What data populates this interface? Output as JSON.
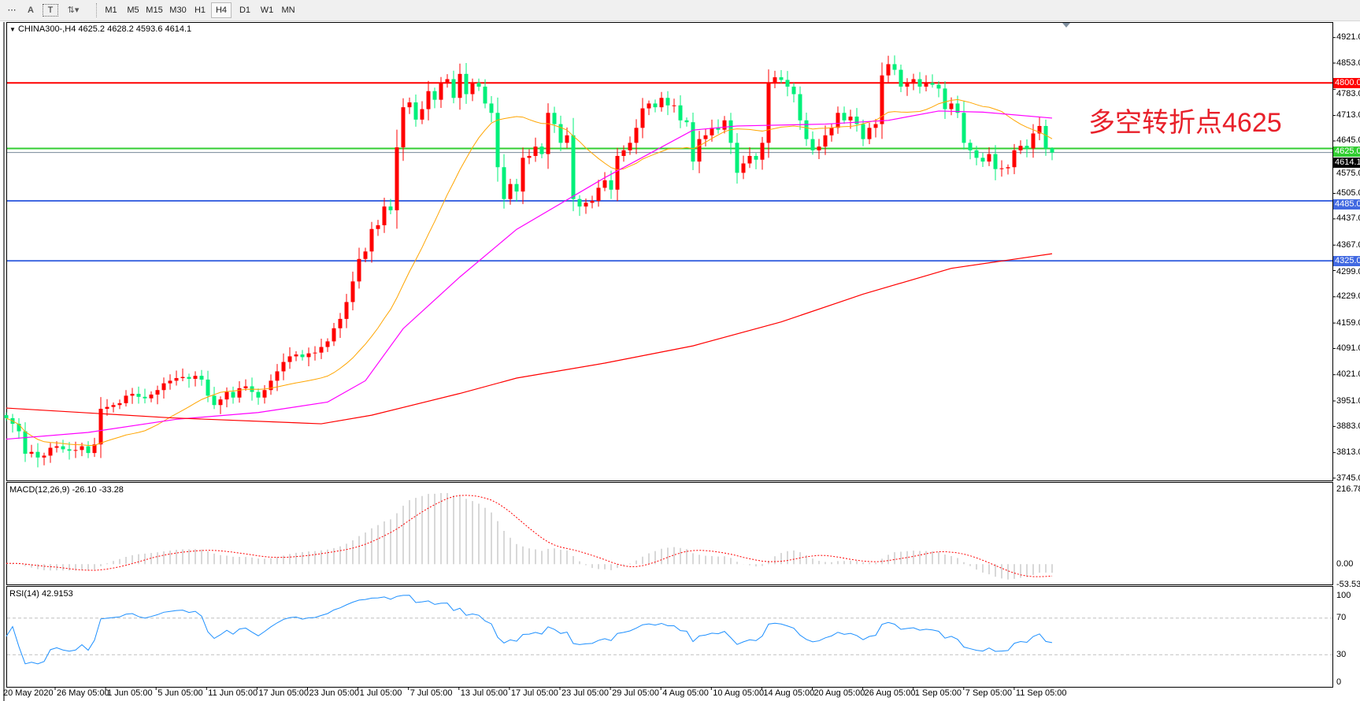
{
  "toolbar": {
    "tools": [
      {
        "name": "grid-icon",
        "glyph": "⋯"
      },
      {
        "name": "text-tool",
        "glyph": "A"
      },
      {
        "name": "text-label-tool",
        "glyph": "T"
      },
      {
        "name": "arrows-tool",
        "glyph": "⇅▾"
      }
    ],
    "timeframes": [
      "M1",
      "M5",
      "M15",
      "M30",
      "H1",
      "H4",
      "D1",
      "W1",
      "MN"
    ],
    "active_timeframe": "H4"
  },
  "chart": {
    "symbol_label": "CHINA300-,H4  4625.2 4628.2 4593.6 4614.1",
    "annotation": "多空转折点4625",
    "annotation_color": "#e8202a",
    "up_color": "#ff0000",
    "down_color": "#00f07a",
    "price_axis": [
      "4921.0",
      "4853.0",
      "4783.0",
      "4713.0",
      "4645.0",
      "4575.0",
      "4505.0",
      "4437.0",
      "4367.0",
      "4299.0",
      "4229.0",
      "4159.0",
      "4091.0",
      "4021.0",
      "3951.0",
      "3883.0",
      "3813.0",
      "3745.0"
    ],
    "ylim": [
      3745,
      4921
    ],
    "levels": [
      {
        "value": 4800,
        "label": "4800.0",
        "color": "#ff0000"
      },
      {
        "value": 4625,
        "label": "4625.0",
        "color": "#32cd32"
      },
      {
        "value": 4614.1,
        "label": "4614.1",
        "color": "#000000",
        "line_color": "#778899"
      },
      {
        "value": 4485,
        "label": "4485.0",
        "color": "#4169e1"
      },
      {
        "value": 4325,
        "label": "4325.0",
        "color": "#4169e1"
      }
    ],
    "closes": [
      3905,
      3890,
      3870,
      3810,
      3815,
      3800,
      3805,
      3826,
      3830,
      3822,
      3818,
      3820,
      3830,
      3812,
      3835,
      3930,
      3935,
      3940,
      3945,
      3965,
      3970,
      3962,
      3958,
      3968,
      3980,
      3998,
      4005,
      4012,
      4015,
      4010,
      4018,
      4008,
      3965,
      3940,
      3955,
      3975,
      3960,
      3985,
      3990,
      3975,
      3960,
      3980,
      4005,
      4030,
      4055,
      4070,
      4075,
      4068,
      4078,
      4080,
      4095,
      4110,
      4145,
      4170,
      4215,
      4270,
      4330,
      4350,
      4410,
      4420,
      4470,
      4460,
      4628,
      4735,
      4748,
      4702,
      4730,
      4778,
      4755,
      4800,
      4810,
      4760,
      4824,
      4770,
      4800,
      4790,
      4745,
      4720,
      4575,
      4490,
      4530,
      4510,
      4600,
      4605,
      4630,
      4610,
      4720,
      4690,
      4640,
      4660,
      4490,
      4470,
      4480,
      4485,
      4520,
      4540,
      4515,
      4605,
      4620,
      4640,
      4680,
      4732,
      4745,
      4735,
      4760,
      4740,
      4740,
      4700,
      4695,
      4590,
      4650,
      4660,
      4680,
      4675,
      4700,
      4640,
      4560,
      4585,
      4605,
      4595,
      4640,
      4800,
      4815,
      4808,
      4790,
      4770,
      4700,
      4650,
      4620,
      4630,
      4660,
      4680,
      4720,
      4700,
      4710,
      4690,
      4650,
      4680,
      4690,
      4820,
      4850,
      4835,
      4790,
      4801,
      4810,
      4790,
      4800,
      4795,
      4785,
      4730,
      4745,
      4720,
      4640,
      4620,
      4600,
      4590,
      4610,
      4570,
      4572,
      4575,
      4620,
      4632,
      4625.2,
      4665,
      4685,
      4625.2,
      4614.1
    ],
    "last_bar": {
      "open": 4625.2,
      "high": 4628.2,
      "low": 4593.6,
      "close": 4614.1
    },
    "ma_fast": {
      "color": "#ffa500",
      "period": 20
    },
    "ma_mid": {
      "color": "#ff00ff",
      "points": [
        [
          0,
          3849
        ],
        [
          13,
          3867
        ],
        [
          27,
          3902
        ],
        [
          40,
          3920
        ],
        [
          51,
          3948
        ],
        [
          57,
          4005
        ],
        [
          63,
          4144
        ],
        [
          72,
          4282
        ],
        [
          81,
          4409
        ],
        [
          95,
          4547
        ],
        [
          109,
          4674
        ],
        [
          116,
          4685
        ],
        [
          130,
          4690
        ],
        [
          140,
          4700
        ],
        [
          148,
          4725
        ],
        [
          155,
          4722
        ],
        [
          166,
          4706
        ]
      ]
    },
    "ma_slow": {
      "color": "#ff0000",
      "points": [
        [
          0,
          3932
        ],
        [
          26,
          3906
        ],
        [
          50,
          3890
        ],
        [
          58,
          3913
        ],
        [
          72,
          3971
        ],
        [
          81,
          4012
        ],
        [
          95,
          4052
        ],
        [
          109,
          4098
        ],
        [
          123,
          4162
        ],
        [
          136,
          4236
        ],
        [
          150,
          4305
        ],
        [
          166,
          4344
        ]
      ]
    },
    "indicator_marker": "triangle-down"
  },
  "macd": {
    "label": "MACD(12,26,9) -26.10 -33.28",
    "axis": [
      "216.78",
      "0.00",
      "-53.53"
    ],
    "ylim": [
      -53.53,
      216.78
    ],
    "histogram_color": "#b0b0b0",
    "signal_color": "#ff0000"
  },
  "rsi": {
    "label": "RSI(14) 42.9153",
    "axis": [
      "100",
      "70",
      "30",
      "0"
    ],
    "levels": [
      70,
      30
    ],
    "color": "#1e90ff"
  },
  "time_axis": [
    "20 May 2020",
    "26 May 05:00",
    "1 Jun 05:00",
    "5 Jun 05:00",
    "11 Jun 05:00",
    "17 Jun 05:00",
    "23 Jun 05:00",
    "1 Jul 05:00",
    "7 Jul 05:00",
    "13 Jul 05:00",
    "17 Jul 05:00",
    "23 Jul 05:00",
    "29 Jul 05:00",
    "4 Aug 05:00",
    "10 Aug 05:00",
    "14 Aug 05:00",
    "20 Aug 05:00",
    "26 Aug 05:00",
    "1 Sep 05:00",
    "7 Sep 05:00",
    "11 Sep 05:00"
  ]
}
